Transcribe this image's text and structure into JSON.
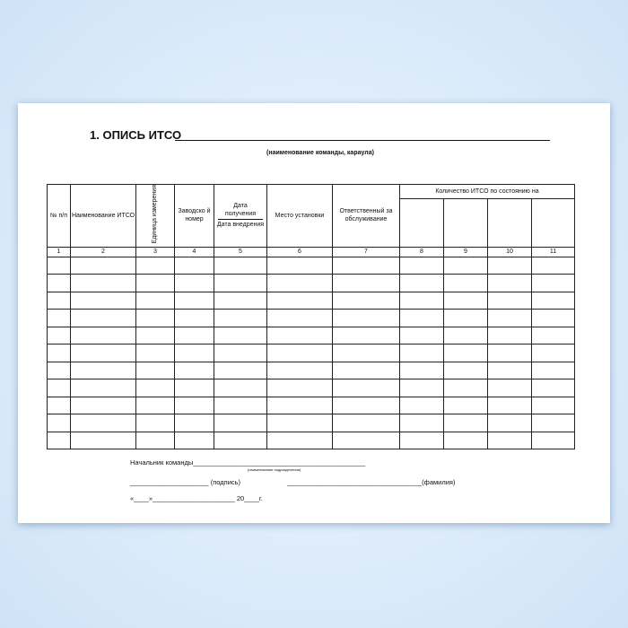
{
  "document": {
    "title": "1. ОПИСЬ ИТСО",
    "subtitle": "(наименование команды, караула)",
    "table": {
      "headers": {
        "c1": "№ п/п",
        "c2": "Наименование ИТСО",
        "c3": "Единица измерения",
        "c4": "Заводско й номер",
        "c5_top": "Дата получения",
        "c5_bottom": "Дата внедрения",
        "c6": "Место установки",
        "c7": "Ответственный за обслуживание",
        "group": "Количество ИТСО по состоянию на"
      },
      "column_numbers": [
        "1",
        "2",
        "3",
        "4",
        "5",
        "6",
        "7",
        "8",
        "9",
        "10",
        "11"
      ],
      "empty_rows": 11
    },
    "footer": {
      "chief": "Начальник команды",
      "chief_line": "______________________________________________",
      "unit_caption": "(наименование подразделения)",
      "sign_line": "_____________________",
      "sign": "(подпись)",
      "name_line": "____________________________________",
      "name": "(фамилия)",
      "date": "«____»______________________ 20____г."
    }
  }
}
